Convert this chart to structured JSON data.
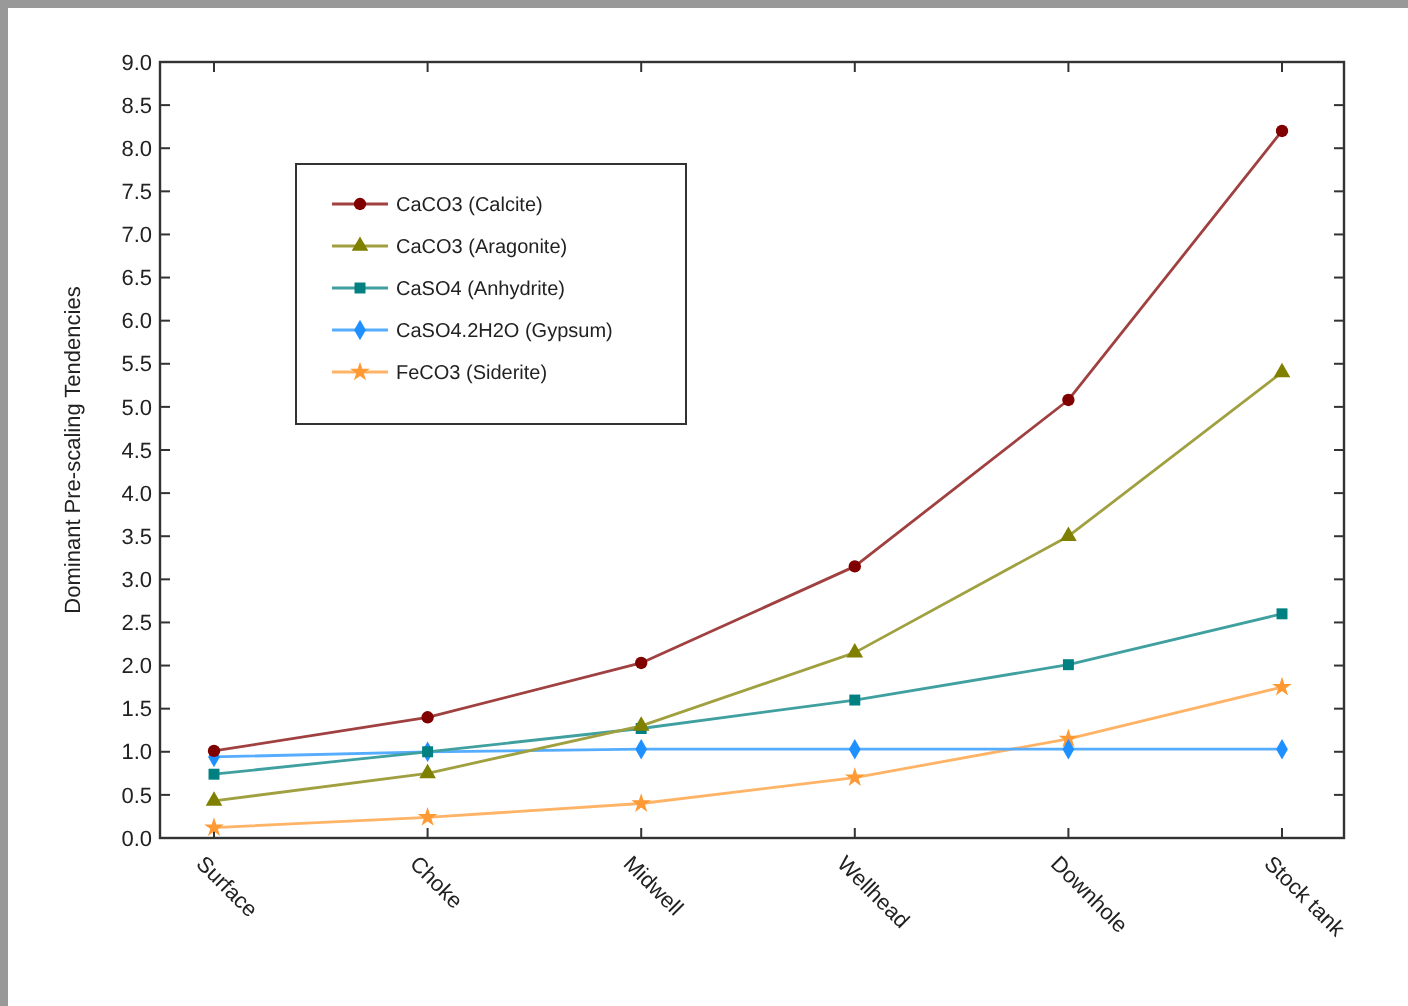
{
  "chart_data": {
    "type": "line",
    "ylabel": "Dominant Pre-scaling Tendencies",
    "categories": [
      "Surface",
      "Choke",
      "Midwell",
      "Wellhead",
      "Downhole",
      "Stock tank"
    ],
    "series": [
      {
        "name": "CaCO3 (Calcite)",
        "color": "#800000",
        "marker": "circle",
        "values": [
          1.01,
          1.4,
          2.03,
          3.15,
          5.08,
          8.2
        ]
      },
      {
        "name": "CaCO3 (Aragonite)",
        "color": "#808000",
        "marker": "triangle",
        "values": [
          0.43,
          0.75,
          1.3,
          2.15,
          3.5,
          5.4
        ]
      },
      {
        "name": "CaSO4 (Anhydrite)",
        "color": "#008080",
        "marker": "square",
        "values": [
          0.74,
          1.0,
          1.27,
          1.6,
          2.01,
          2.6
        ]
      },
      {
        "name": "CaSO4.2H2O (Gypsum)",
        "color": "#1e90ff",
        "marker": "diamond",
        "values": [
          0.94,
          1.0,
          1.03,
          1.03,
          1.03,
          1.03
        ]
      },
      {
        "name": "FeCO3 (Siderite)",
        "color": "#ff9933",
        "marker": "star",
        "values": [
          0.12,
          0.24,
          0.4,
          0.7,
          1.15,
          1.75
        ]
      }
    ],
    "ylim": [
      0,
      9
    ],
    "yticks": [
      {
        "value": 0,
        "label": "0.0"
      },
      0.5,
      {
        "value": 1,
        "label": "1.0"
      },
      1.5,
      {
        "value": 2,
        "label": "2.0"
      },
      2.5,
      {
        "value": 3,
        "label": "3.0"
      },
      3.5,
      {
        "value": 4,
        "label": "4.0"
      },
      4.5,
      {
        "value": 5,
        "label": "5.0"
      },
      5.5,
      {
        "value": 6,
        "label": "6.0"
      },
      6.5,
      {
        "value": 7,
        "label": "7.0"
      },
      7.5,
      {
        "value": 8,
        "label": "8.0"
      },
      8.5,
      {
        "value": 9,
        "label": "9.0"
      }
    ],
    "grid": false,
    "legend": "top left",
    "line_style": "solid"
  }
}
